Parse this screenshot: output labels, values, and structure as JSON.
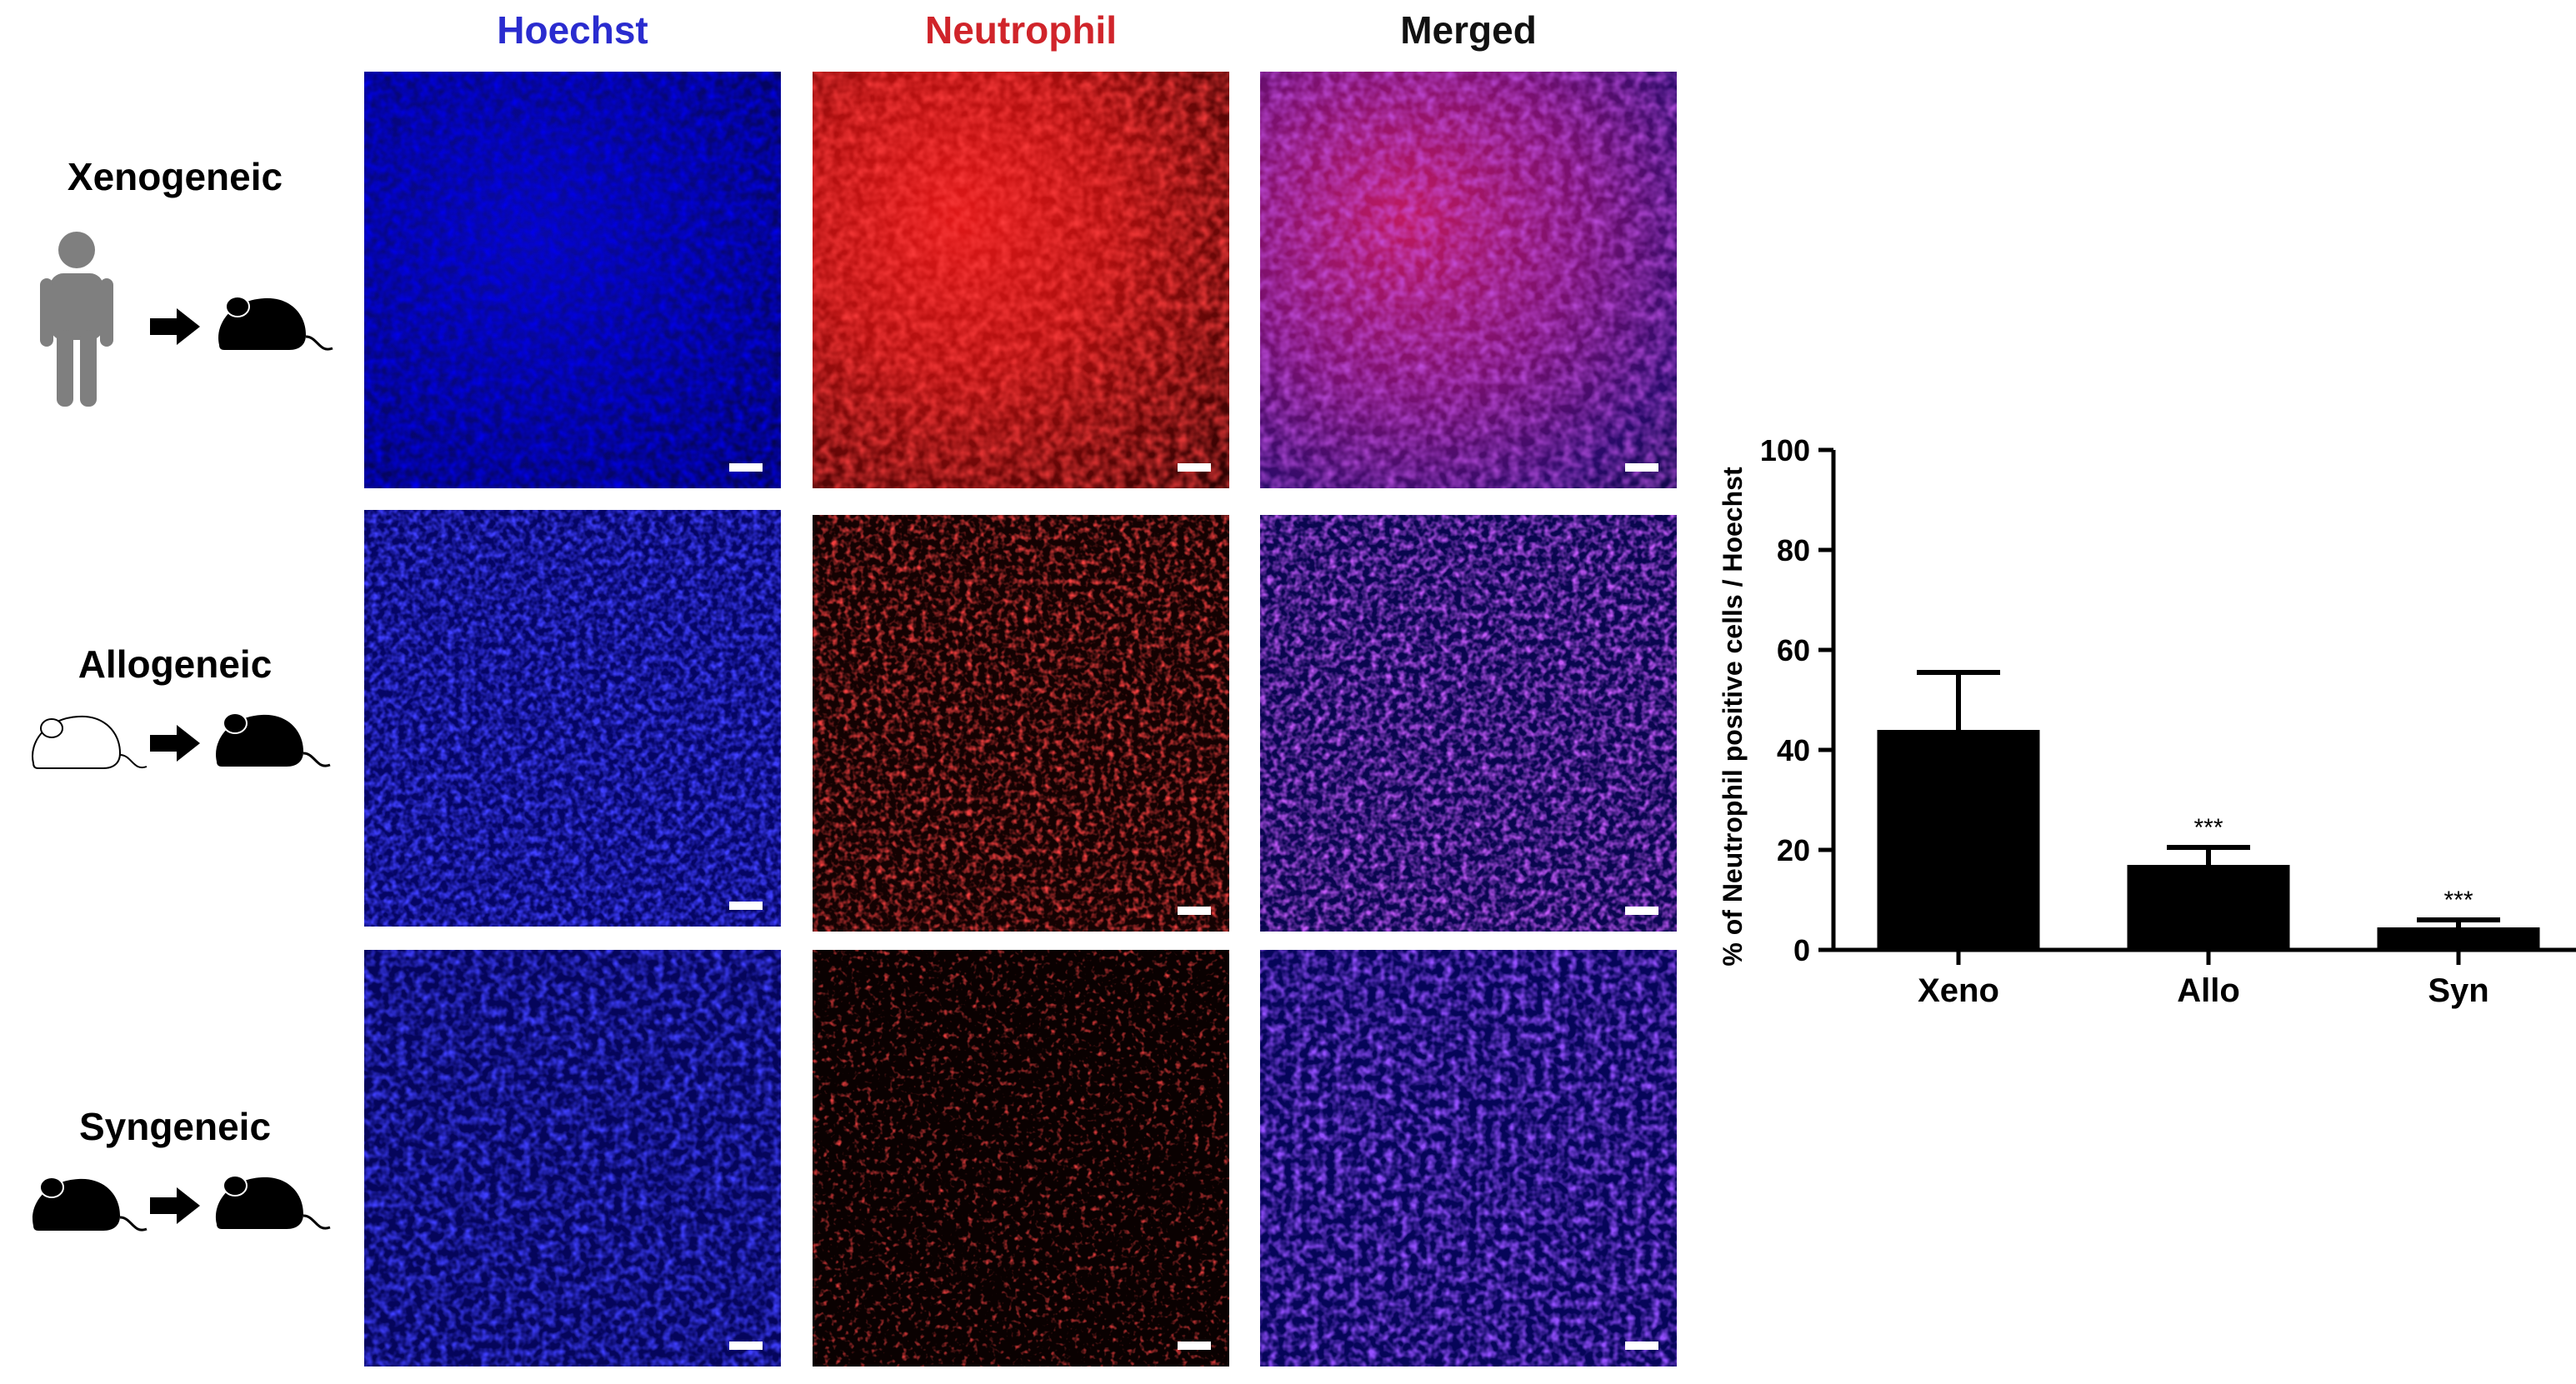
{
  "columns": [
    {
      "label": "Hoechst",
      "color": "#2a2ccf"
    },
    {
      "label": "Neutrophil",
      "color": "#d0242a"
    },
    {
      "label": "Merged",
      "color": "#111111"
    }
  ],
  "rows": [
    {
      "label": "Xenogeneic",
      "donor_icon": "human-icon",
      "recipient_icon": "black-mouse-icon"
    },
    {
      "label": "Allogeneic",
      "donor_icon": "white-mouse-icon",
      "recipient_icon": "black-mouse-icon"
    },
    {
      "label": "Syngeneic",
      "donor_icon": "black-mouse-icon",
      "recipient_icon": "black-mouse-icon"
    }
  ],
  "colors": {
    "hoechst": "#1414c8",
    "neutrophil": "#e01818",
    "human_icon": "#7f7f7f",
    "mouse": "#000000"
  },
  "chart_data": {
    "type": "bar",
    "categories": [
      "Xeno",
      "Allo",
      "Syn"
    ],
    "values": [
      44,
      17,
      4.5
    ],
    "errors": [
      11.5,
      3.5,
      1.5
    ],
    "significance": [
      "",
      "***",
      "***"
    ],
    "xlabel": "",
    "ylabel": "% of Neutrophil positive cells / Hoechst",
    "ylim": [
      0,
      100
    ],
    "yticks": [
      0,
      20,
      40,
      60,
      80,
      100
    ],
    "bar_color": "#000000",
    "grid": false,
    "legend": "none"
  }
}
